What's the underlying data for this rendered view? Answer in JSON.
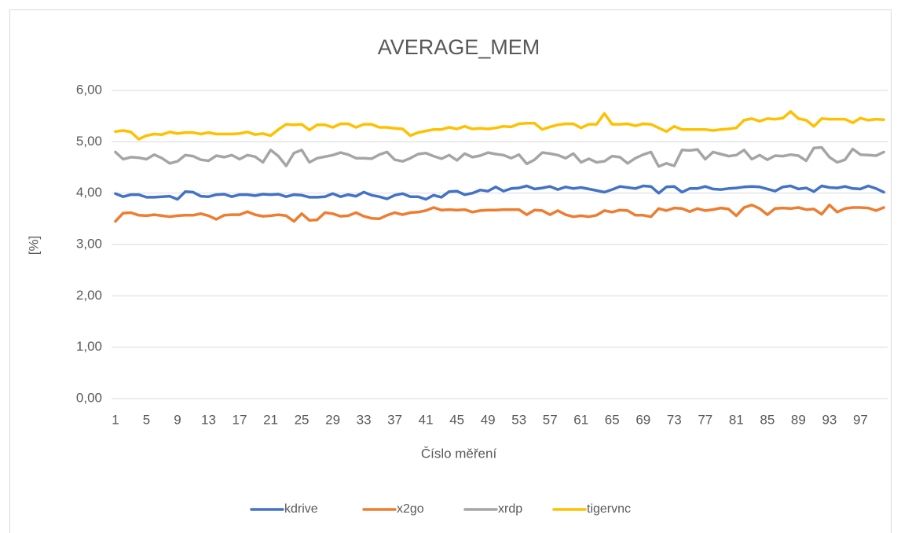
{
  "chart_data": {
    "type": "line",
    "title": "AVERAGE_MEM",
    "xlabel": "Číslo měření",
    "ylabel": "[%]",
    "categories": [
      1,
      null,
      null,
      null,
      5,
      null,
      null,
      null,
      9,
      null,
      null,
      null,
      13,
      null,
      null,
      null,
      17,
      null,
      null,
      null,
      21,
      null,
      null,
      null,
      25,
      null,
      null,
      null,
      29,
      null,
      null,
      null,
      33,
      null,
      null,
      null,
      37,
      null,
      null,
      null,
      41,
      null,
      null,
      null,
      45,
      null,
      null,
      null,
      49,
      null,
      null,
      null,
      53,
      null,
      null,
      null,
      57,
      null,
      null,
      null,
      61,
      null,
      null,
      null,
      65,
      null,
      null,
      null,
      69,
      null,
      null,
      null,
      73,
      null,
      null,
      null,
      77,
      null,
      null,
      null,
      81,
      null,
      null,
      null,
      85,
      null,
      null,
      null,
      89,
      null,
      null,
      null,
      93,
      null,
      null,
      null,
      97,
      null,
      null,
      null
    ],
    "series": [
      {
        "name": "kdrive",
        "color": "#4472c4",
        "values": [
          3.99,
          3.93,
          3.97,
          3.97,
          3.92,
          3.92,
          3.93,
          3.94,
          3.88,
          4.03,
          4.02,
          3.94,
          3.93,
          3.97,
          3.98,
          3.93,
          3.97,
          3.97,
          3.95,
          3.98,
          3.97,
          3.98,
          3.93,
          3.97,
          3.96,
          3.92,
          3.92,
          3.93,
          3.99,
          3.93,
          3.97,
          3.94,
          4.02,
          3.96,
          3.93,
          3.89,
          3.96,
          3.99,
          3.93,
          3.93,
          3.88,
          3.96,
          3.92,
          4.03,
          4.04,
          3.97,
          4.0,
          4.06,
          4.04,
          4.12,
          4.04,
          4.09,
          4.1,
          4.14,
          4.08,
          4.1,
          4.13,
          4.07,
          4.12,
          4.09,
          4.11,
          4.08,
          4.05,
          4.02,
          4.07,
          4.13,
          4.11,
          4.09,
          4.14,
          4.13,
          4.0,
          4.12,
          4.13,
          4.02,
          4.09,
          4.09,
          4.13,
          4.08,
          4.07,
          4.09,
          4.1,
          4.12,
          4.13,
          4.12,
          4.08,
          4.04,
          4.12,
          4.14,
          4.08,
          4.1,
          4.03,
          4.14,
          4.11,
          4.1,
          4.13,
          4.09,
          4.08,
          4.14,
          4.09,
          4.02
        ]
      },
      {
        "name": "x2go",
        "color": "#ed7d31",
        "values": [
          3.45,
          3.61,
          3.62,
          3.57,
          3.56,
          3.58,
          3.56,
          3.54,
          3.56,
          3.57,
          3.57,
          3.6,
          3.56,
          3.49,
          3.57,
          3.58,
          3.58,
          3.64,
          3.58,
          3.55,
          3.56,
          3.58,
          3.56,
          3.45,
          3.6,
          3.47,
          3.48,
          3.62,
          3.6,
          3.55,
          3.56,
          3.62,
          3.55,
          3.51,
          3.5,
          3.57,
          3.62,
          3.58,
          3.62,
          3.63,
          3.66,
          3.72,
          3.67,
          3.68,
          3.67,
          3.68,
          3.63,
          3.66,
          3.67,
          3.67,
          3.68,
          3.68,
          3.68,
          3.58,
          3.67,
          3.66,
          3.58,
          3.66,
          3.58,
          3.54,
          3.56,
          3.54,
          3.57,
          3.66,
          3.63,
          3.67,
          3.66,
          3.57,
          3.57,
          3.54,
          3.7,
          3.66,
          3.71,
          3.7,
          3.64,
          3.7,
          3.66,
          3.68,
          3.71,
          3.69,
          3.56,
          3.72,
          3.77,
          3.7,
          3.58,
          3.7,
          3.71,
          3.7,
          3.72,
          3.68,
          3.69,
          3.59,
          3.77,
          3.63,
          3.7,
          3.72,
          3.72,
          3.71,
          3.66,
          3.72
        ]
      },
      {
        "name": "xrdp",
        "color": "#a5a5a5",
        "values": [
          4.8,
          4.66,
          4.7,
          4.69,
          4.66,
          4.75,
          4.68,
          4.58,
          4.62,
          4.74,
          4.72,
          4.65,
          4.63,
          4.73,
          4.7,
          4.74,
          4.66,
          4.74,
          4.71,
          4.6,
          4.84,
          4.72,
          4.53,
          4.78,
          4.84,
          4.6,
          4.68,
          4.71,
          4.74,
          4.79,
          4.75,
          4.68,
          4.68,
          4.67,
          4.75,
          4.8,
          4.65,
          4.62,
          4.68,
          4.76,
          4.78,
          4.72,
          4.67,
          4.74,
          4.64,
          4.77,
          4.7,
          4.73,
          4.79,
          4.76,
          4.74,
          4.68,
          4.75,
          4.57,
          4.65,
          4.79,
          4.77,
          4.74,
          4.68,
          4.77,
          4.6,
          4.67,
          4.6,
          4.62,
          4.72,
          4.7,
          4.58,
          4.68,
          4.75,
          4.8,
          4.52,
          4.58,
          4.53,
          4.84,
          4.83,
          4.85,
          4.66,
          4.8,
          4.76,
          4.72,
          4.74,
          4.84,
          4.66,
          4.74,
          4.65,
          4.73,
          4.72,
          4.75,
          4.73,
          4.63,
          4.88,
          4.89,
          4.7,
          4.6,
          4.65,
          4.86,
          4.75,
          4.74,
          4.73,
          4.8
        ]
      },
      {
        "name": "tigervnc",
        "color": "#ffc000",
        "values": [
          5.2,
          5.22,
          5.19,
          5.05,
          5.12,
          5.15,
          5.14,
          5.19,
          5.16,
          5.18,
          5.18,
          5.15,
          5.18,
          5.15,
          5.15,
          5.15,
          5.16,
          5.19,
          5.14,
          5.16,
          5.12,
          5.24,
          5.34,
          5.33,
          5.34,
          5.23,
          5.33,
          5.33,
          5.28,
          5.35,
          5.35,
          5.28,
          5.34,
          5.34,
          5.28,
          5.28,
          5.26,
          5.25,
          5.12,
          5.18,
          5.21,
          5.24,
          5.24,
          5.28,
          5.25,
          5.3,
          5.25,
          5.26,
          5.25,
          5.27,
          5.3,
          5.29,
          5.35,
          5.36,
          5.36,
          5.24,
          5.29,
          5.33,
          5.35,
          5.35,
          5.27,
          5.34,
          5.34,
          5.55,
          5.34,
          5.34,
          5.35,
          5.31,
          5.35,
          5.34,
          5.27,
          5.2,
          5.3,
          5.24,
          5.24,
          5.24,
          5.24,
          5.22,
          5.24,
          5.25,
          5.27,
          5.42,
          5.45,
          5.4,
          5.45,
          5.44,
          5.46,
          5.59,
          5.45,
          5.42,
          5.3,
          5.45,
          5.44,
          5.44,
          5.44,
          5.37,
          5.46,
          5.42,
          5.44,
          5.43
        ]
      }
    ],
    "ylim": [
      0,
      6
    ],
    "yticks": [
      {
        "value": 0,
        "label": "0,00"
      },
      {
        "value": 1,
        "label": "1,00"
      },
      {
        "value": 2,
        "label": "2,00"
      },
      {
        "value": 3,
        "label": "3,00"
      },
      {
        "value": 4,
        "label": "4,00"
      },
      {
        "value": 5,
        "label": "5,00"
      },
      {
        "value": 6,
        "label": "6,00"
      }
    ],
    "grid": true,
    "legend": "bottom"
  }
}
